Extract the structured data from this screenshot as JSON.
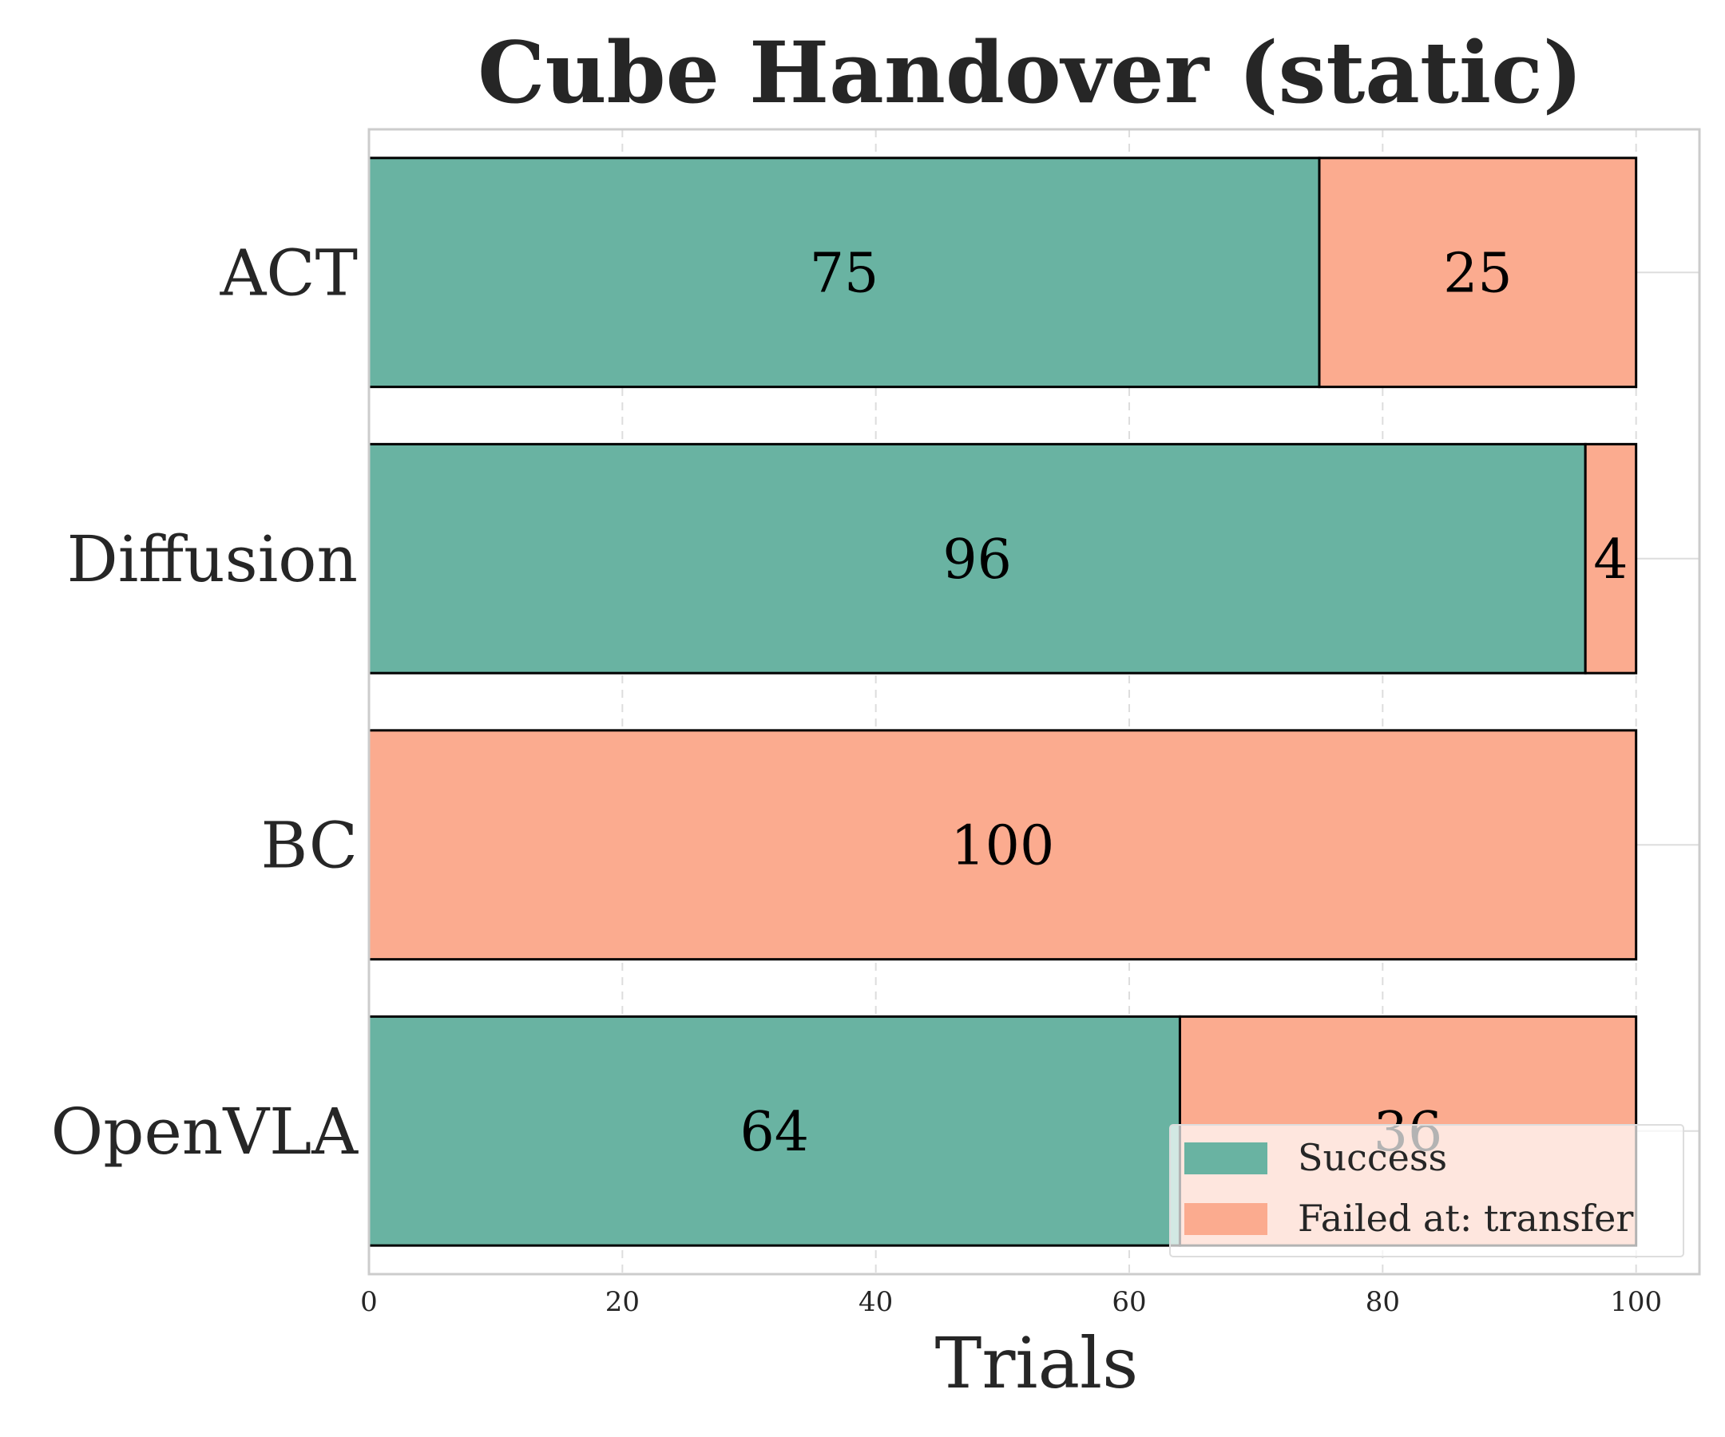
{
  "chart_data": {
    "type": "bar",
    "orientation": "horizontal",
    "stacked": true,
    "title": "Cube Handover (static)",
    "xlabel": "Trials",
    "ylabel": "",
    "xlim": [
      0,
      105
    ],
    "xticks": [
      0,
      20,
      40,
      60,
      80,
      100
    ],
    "categories": [
      "ACT",
      "Diffusion",
      "BC",
      "OpenVLA"
    ],
    "series": [
      {
        "name": "Success",
        "color": "#69b3a2",
        "values": [
          75,
          96,
          0,
          64
        ]
      },
      {
        "name": "Failed at: transfer",
        "color": "#fbab8f",
        "values": [
          25,
          4,
          100,
          36
        ]
      }
    ],
    "grid": true,
    "legend_position": "lower-right"
  }
}
